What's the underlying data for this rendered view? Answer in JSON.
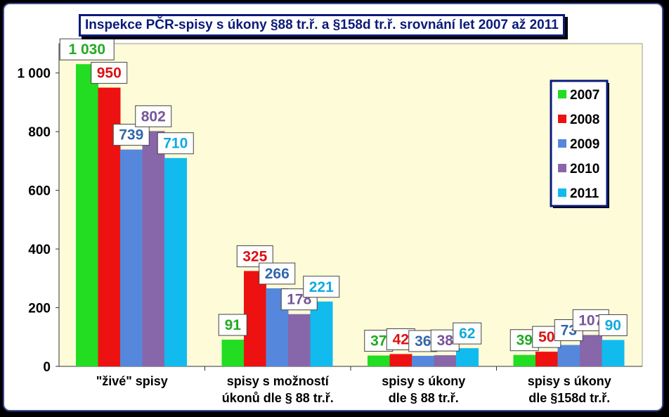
{
  "title": "Inspekce PČR-spisy s úkony §88 tr.ř. a §158d tr.ř. srovnání let 2007 až 2011",
  "chart_data": {
    "type": "bar",
    "title": "Inspekce PČR-spisy s úkony §88 tr.ř. a §158d tr.ř. srovnání let 2007 až 2011",
    "categories": [
      [
        "\"živé\" spisy"
      ],
      [
        "spisy s možností",
        "úkonů dle § 88 tr.ř."
      ],
      [
        "spisy s úkony",
        "dle § 88 tr.ř."
      ],
      [
        "spisy s úkony",
        "dle §158d tr.ř."
      ]
    ],
    "series": [
      {
        "name": "2007",
        "color": "#22dd22",
        "values": [
          1030,
          91,
          37,
          39
        ],
        "labels": [
          "1 030",
          "91",
          "37",
          "39"
        ]
      },
      {
        "name": "2008",
        "color": "#ee1111",
        "values": [
          950,
          325,
          42,
          50
        ],
        "labels": [
          "950",
          "325",
          "42",
          "50"
        ]
      },
      {
        "name": "2009",
        "color": "#5588dd",
        "values": [
          739,
          266,
          36,
          73
        ],
        "labels": [
          "739",
          "266",
          "36",
          "73"
        ]
      },
      {
        "name": "2010",
        "color": "#8866aa",
        "values": [
          802,
          178,
          38,
          107
        ],
        "labels": [
          "802",
          "178",
          "38",
          "107"
        ]
      },
      {
        "name": "2011",
        "color": "#11bbee",
        "values": [
          710,
          221,
          62,
          90
        ],
        "labels": [
          "710",
          "221",
          "62",
          "90"
        ]
      }
    ],
    "label_colors": [
      "#22aa22",
      "#dd1111",
      "#3366aa",
      "#775599",
      "#11aadd"
    ],
    "yticks": [
      0,
      200,
      400,
      600,
      800,
      1000
    ],
    "ytick_labels": [
      "0",
      "200",
      "400",
      "600",
      "800",
      "1 000"
    ],
    "ylim": [
      0,
      1100
    ],
    "grid": false,
    "legend_position": "top-right",
    "plot_background": "#fefbd8"
  }
}
